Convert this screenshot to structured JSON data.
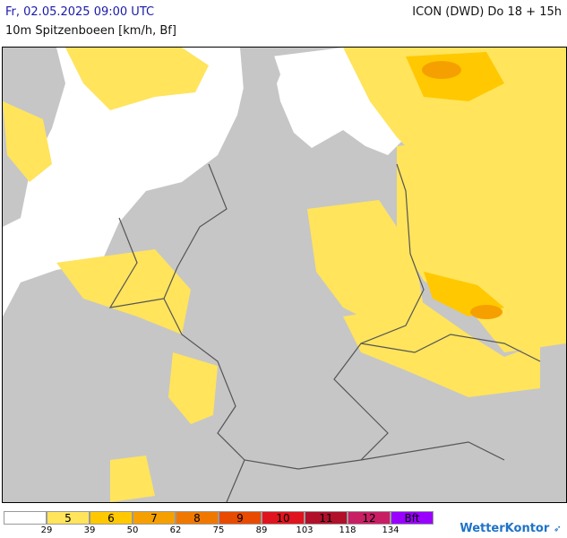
{
  "header": {
    "datetime": "Fr, 02.05.2025 09:00 UTC",
    "model": "ICON (DWD) Do 18 + 15h",
    "parameter": "10m Spitzenboeen [km/h, Bf]"
  },
  "legend": {
    "cells": [
      {
        "label": "",
        "color": "#ffffff"
      },
      {
        "label": "5",
        "color": "#ffe45c"
      },
      {
        "label": "6",
        "color": "#ffc800"
      },
      {
        "label": "7",
        "color": "#f5a000"
      },
      {
        "label": "8",
        "color": "#f07800"
      },
      {
        "label": "9",
        "color": "#e84a00"
      },
      {
        "label": "10",
        "color": "#e0141e"
      },
      {
        "label": "11",
        "color": "#b0102a"
      },
      {
        "label": "12",
        "color": "#c81e64"
      },
      {
        "label": "Bft",
        "color": "#9a00ff"
      }
    ],
    "ticks": [
      "29",
      "39",
      "50",
      "62",
      "75",
      "89",
      "103",
      "118",
      "134"
    ]
  },
  "brand": {
    "name": "WetterKontor"
  },
  "colors": {
    "land": "#c6c6c6",
    "sea": "#ffffff",
    "gust_5": "#ffe45c",
    "gust_6": "#ffc800",
    "gust_7": "#f5a000"
  }
}
